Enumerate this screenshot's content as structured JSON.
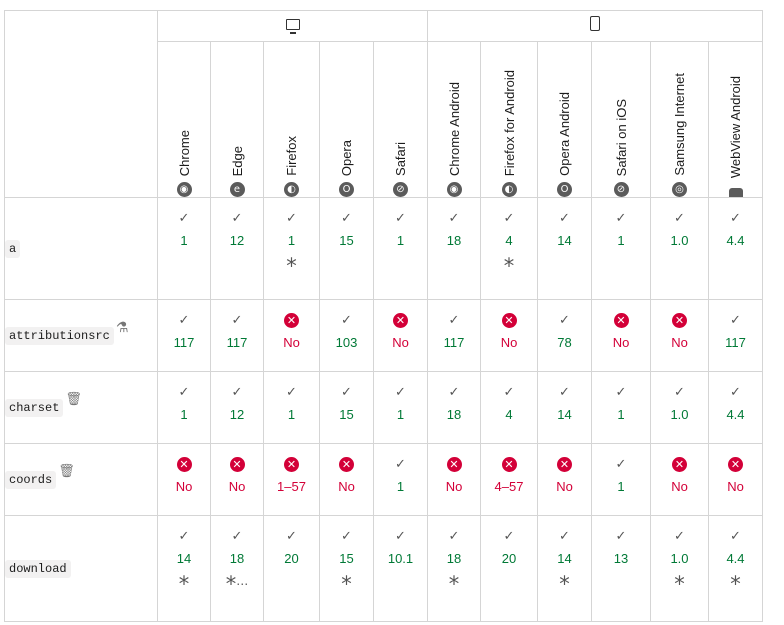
{
  "platforms": [
    {
      "name": "desktop",
      "icon": "desktop-icon"
    },
    {
      "name": "mobile",
      "icon": "mobile-icon"
    }
  ],
  "browsers": [
    {
      "label": "Chrome",
      "icon": "chrome-icon",
      "glyph": "◉"
    },
    {
      "label": "Edge",
      "icon": "edge-icon",
      "glyph": "e"
    },
    {
      "label": "Firefox",
      "icon": "firefox-icon",
      "glyph": "◐"
    },
    {
      "label": "Opera",
      "icon": "opera-icon",
      "glyph": "O"
    },
    {
      "label": "Safari",
      "icon": "safari-icon",
      "glyph": "⊘"
    },
    {
      "label": "Chrome Android",
      "icon": "chrome-icon",
      "glyph": "◉"
    },
    {
      "label": "Firefox for Android",
      "icon": "firefox-icon",
      "glyph": "◐"
    },
    {
      "label": "Opera Android",
      "icon": "opera-icon",
      "glyph": "O"
    },
    {
      "label": "Safari on iOS",
      "icon": "safari-icon",
      "glyph": "⊘"
    },
    {
      "label": "Samsung Internet",
      "icon": "samsung-internet-icon",
      "glyph": "◎"
    },
    {
      "label": "WebView Android",
      "icon": "android-icon",
      "glyph": ""
    }
  ],
  "rows": [
    {
      "feature": "a",
      "feature_icon": null,
      "cells": [
        {
          "s": "yes",
          "v": "1"
        },
        {
          "s": "yes",
          "v": "12"
        },
        {
          "s": "yes",
          "v": "1",
          "note": "*"
        },
        {
          "s": "yes",
          "v": "15"
        },
        {
          "s": "yes",
          "v": "1"
        },
        {
          "s": "yes",
          "v": "18"
        },
        {
          "s": "yes",
          "v": "4",
          "note": "*"
        },
        {
          "s": "yes",
          "v": "14"
        },
        {
          "s": "yes",
          "v": "1"
        },
        {
          "s": "yes",
          "v": "1.0"
        },
        {
          "s": "yes",
          "v": "4.4"
        }
      ]
    },
    {
      "feature": "attributionsrc",
      "feature_icon": "experimental-flask-icon",
      "cells": [
        {
          "s": "yes",
          "v": "117"
        },
        {
          "s": "yes",
          "v": "117"
        },
        {
          "s": "no",
          "v": "No"
        },
        {
          "s": "yes",
          "v": "103"
        },
        {
          "s": "no",
          "v": "No"
        },
        {
          "s": "yes",
          "v": "117"
        },
        {
          "s": "no",
          "v": "No"
        },
        {
          "s": "yes",
          "v": "78"
        },
        {
          "s": "no",
          "v": "No"
        },
        {
          "s": "no",
          "v": "No"
        },
        {
          "s": "yes",
          "v": "117"
        }
      ]
    },
    {
      "feature": "charset",
      "feature_icon": "deprecated-trash-icon",
      "cells": [
        {
          "s": "yes",
          "v": "1"
        },
        {
          "s": "yes",
          "v": "12"
        },
        {
          "s": "yes",
          "v": "1"
        },
        {
          "s": "yes",
          "v": "15"
        },
        {
          "s": "yes",
          "v": "1"
        },
        {
          "s": "yes",
          "v": "18"
        },
        {
          "s": "yes",
          "v": "4"
        },
        {
          "s": "yes",
          "v": "14"
        },
        {
          "s": "yes",
          "v": "1"
        },
        {
          "s": "yes",
          "v": "1.0"
        },
        {
          "s": "yes",
          "v": "4.4"
        }
      ]
    },
    {
      "feature": "coords",
      "feature_icon": "deprecated-trash-icon",
      "cells": [
        {
          "s": "no",
          "v": "No"
        },
        {
          "s": "no",
          "v": "No"
        },
        {
          "s": "no",
          "v": "1–57"
        },
        {
          "s": "no",
          "v": "No"
        },
        {
          "s": "yes",
          "v": "1"
        },
        {
          "s": "no",
          "v": "No"
        },
        {
          "s": "no",
          "v": "4–57"
        },
        {
          "s": "no",
          "v": "No"
        },
        {
          "s": "yes",
          "v": "1"
        },
        {
          "s": "no",
          "v": "No"
        },
        {
          "s": "no",
          "v": "No"
        }
      ]
    },
    {
      "feature": "download",
      "feature_icon": null,
      "cells": [
        {
          "s": "yes",
          "v": "14",
          "note": "*"
        },
        {
          "s": "yes",
          "v": "18",
          "note": "*",
          "more": "⋯"
        },
        {
          "s": "yes",
          "v": "20"
        },
        {
          "s": "yes",
          "v": "15",
          "note": "*"
        },
        {
          "s": "yes",
          "v": "10.1"
        },
        {
          "s": "yes",
          "v": "18",
          "note": "*"
        },
        {
          "s": "yes",
          "v": "20"
        },
        {
          "s": "yes",
          "v": "14",
          "note": "*"
        },
        {
          "s": "yes",
          "v": "13"
        },
        {
          "s": "yes",
          "v": "1.0",
          "note": "*"
        },
        {
          "s": "yes",
          "v": "4.4",
          "note": "*"
        }
      ]
    }
  ],
  "colors": {
    "yes": "#007936",
    "no": "#d30038",
    "border": "#d5d5d5"
  }
}
